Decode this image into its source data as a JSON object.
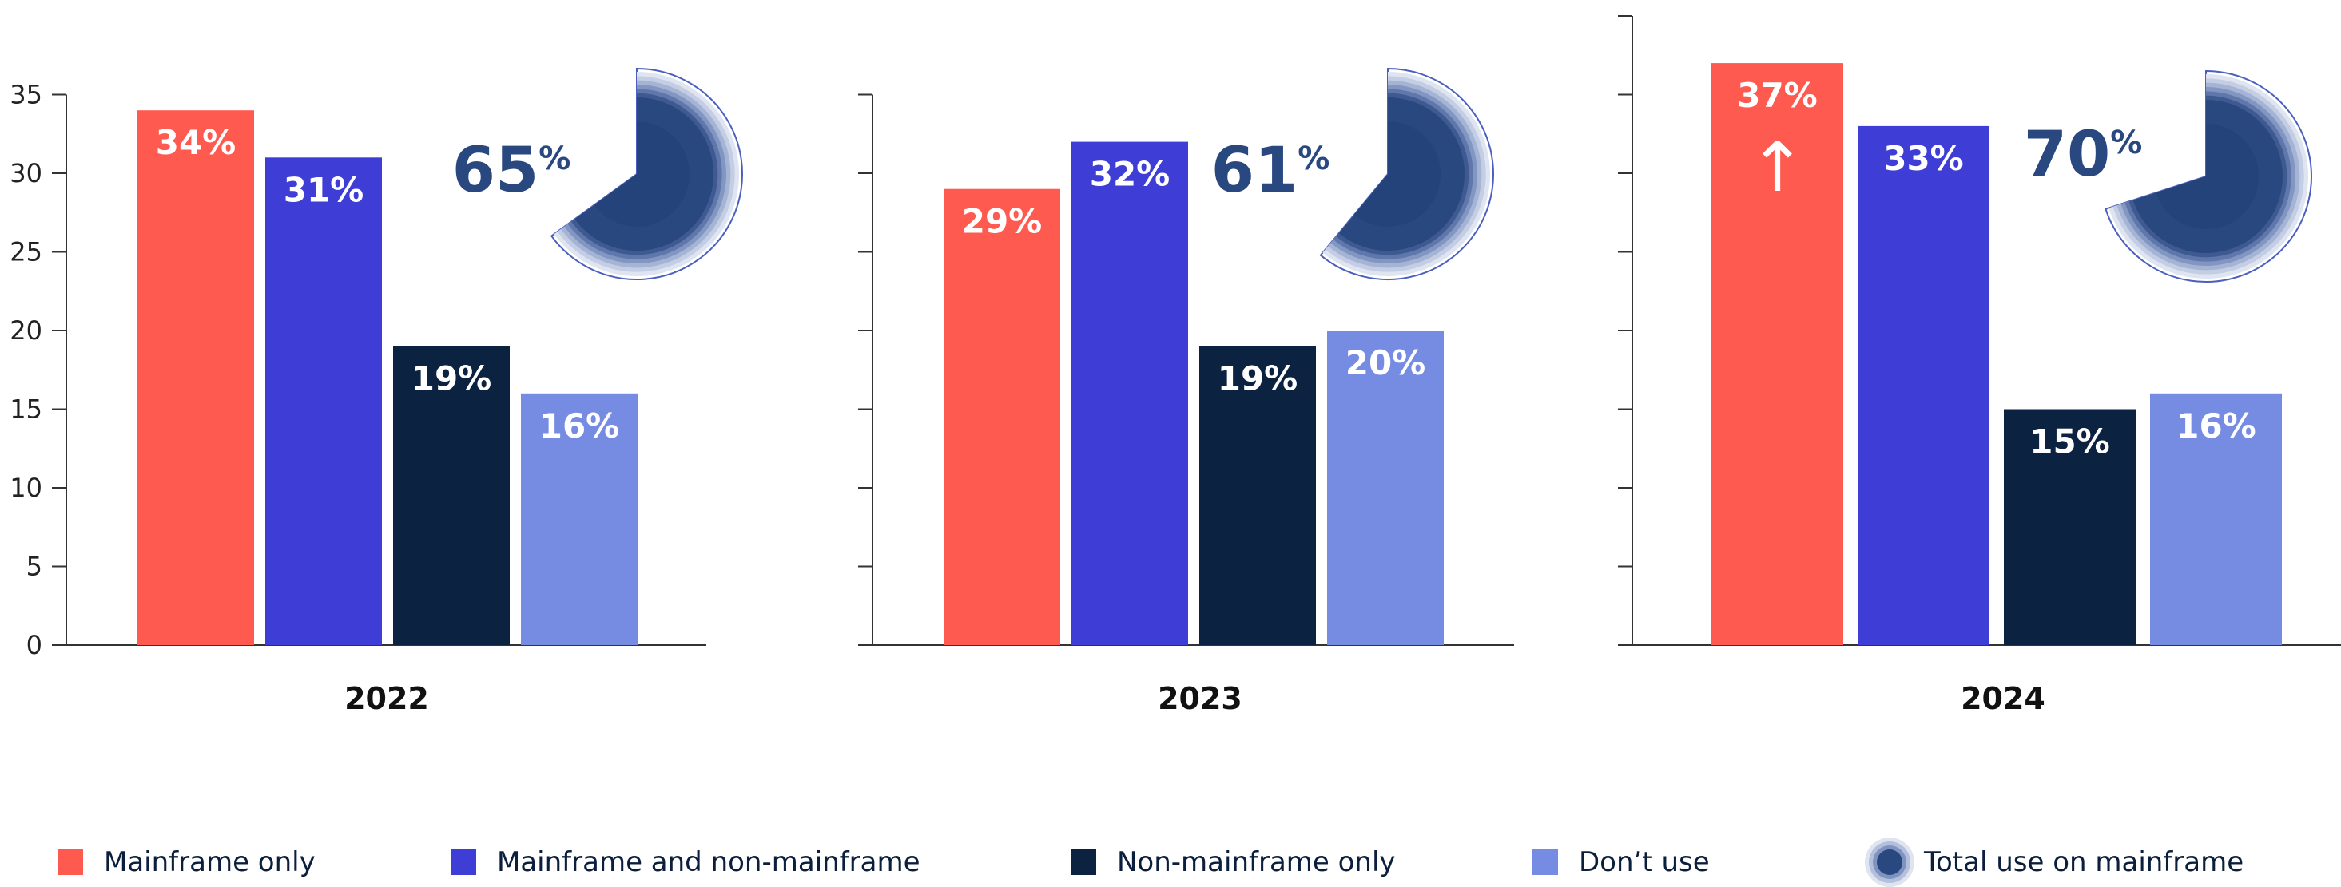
{
  "colors": {
    "mainframe_only": "#ff5a4f",
    "mainframe_and_non": "#3e3ed6",
    "non_mainframe_only": "#0b2240",
    "dont_use": "#768ce2",
    "total": "#28487f",
    "axis": "#333333",
    "year_text": "#111111"
  },
  "chart_data": [
    {
      "type": "bar",
      "xlabel": "2022",
      "ylim": [
        0,
        35
      ],
      "yticks": [
        0,
        5,
        10,
        15,
        20,
        25,
        30,
        35
      ],
      "categories": [
        "Mainframe only",
        "Mainframe and non-mainframe",
        "Non-mainframe only",
        "Don’t use"
      ],
      "values": [
        34,
        31,
        19,
        16
      ],
      "data_labels": [
        "34%",
        "31%",
        "19%",
        "16%"
      ],
      "total_use_on_mainframe": {
        "value": 65,
        "number": "65",
        "unit": "%"
      }
    },
    {
      "type": "bar",
      "xlabel": "2023",
      "ylim": [
        0,
        35
      ],
      "yticks": [
        0,
        5,
        10,
        15,
        20,
        25,
        30,
        35
      ],
      "categories": [
        "Mainframe only",
        "Mainframe and non-mainframe",
        "Non-mainframe only",
        "Don’t use"
      ],
      "values": [
        29,
        32,
        19,
        20
      ],
      "data_labels": [
        "29%",
        "32%",
        "19%",
        "20%"
      ],
      "total_use_on_mainframe": {
        "value": 61,
        "number": "61",
        "unit": "%"
      }
    },
    {
      "type": "bar",
      "xlabel": "2024",
      "ylim": [
        0,
        40
      ],
      "yticks": [
        0,
        5,
        10,
        15,
        20,
        25,
        30,
        35,
        40
      ],
      "categories": [
        "Mainframe only",
        "Mainframe and non-mainframe",
        "Non-mainframe only",
        "Don’t use"
      ],
      "values": [
        37,
        33,
        15,
        16
      ],
      "data_labels": [
        "37%",
        "33%",
        "15%",
        "16%"
      ],
      "annotation": {
        "category": "Mainframe only",
        "symbol": "↑"
      },
      "total_use_on_mainframe": {
        "value": 70,
        "number": "70",
        "unit": "%"
      }
    }
  ],
  "legend": [
    {
      "label": "Mainframe only",
      "color": "#ff5a4f"
    },
    {
      "label": "Mainframe and non-mainframe",
      "color": "#3e3ed6"
    },
    {
      "label": "Non-mainframe only",
      "color": "#0b2240"
    },
    {
      "label": "Don’t use",
      "color": "#768ce2"
    },
    {
      "label": "Total use on mainframe",
      "icon": "radial-rings-icon"
    }
  ]
}
